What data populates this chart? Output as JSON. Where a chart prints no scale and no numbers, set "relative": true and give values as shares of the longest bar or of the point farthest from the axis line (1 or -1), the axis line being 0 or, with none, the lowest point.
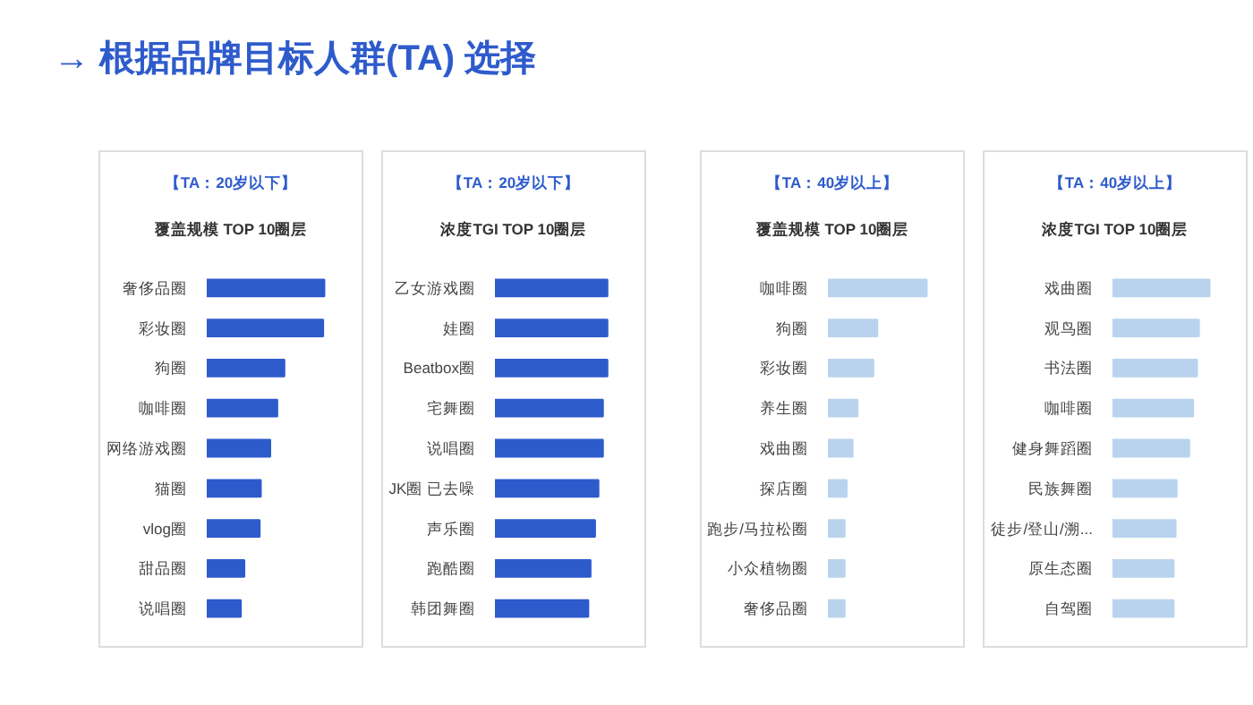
{
  "chart_data": [
    {
      "type": "bar",
      "orientation": "horizontal",
      "relative": true,
      "grid": false,
      "title": "【TA：20岁以下】",
      "subtitle": "覆盖规模 TOP 10圈层",
      "annotations": [
        "→ 根据品牌目标人群(TA) 选择"
      ],
      "color": "#2e5bcc",
      "categories": [
        "奢侈品圈",
        "彩妆圈",
        "狗圈",
        "咖啡圈",
        "网络游戏圈",
        "猫圈",
        "vlog圈",
        "甜品圈",
        "说唱圈"
      ],
      "values": [
        1,
        0.99,
        0.66,
        0.6,
        0.54,
        0.46,
        0.45,
        0.32,
        0.29
      ]
    },
    {
      "type": "bar",
      "orientation": "horizontal",
      "relative": true,
      "grid": false,
      "title": "【TA：20岁以下】",
      "subtitle": "浓度TGI TOP 10圈层",
      "color": "#2e5bcc",
      "categories": [
        "乙女游戏圈",
        "娃圈",
        "Beatbox圈",
        "宅舞圈",
        "说唱圈",
        "JK圈 已去噪",
        "声乐圈",
        "跑酷圈",
        "韩团舞圈"
      ],
      "values": [
        1,
        1,
        1,
        0.96,
        0.96,
        0.92,
        0.89,
        0.85,
        0.83
      ]
    },
    {
      "type": "bar",
      "orientation": "horizontal",
      "relative": true,
      "grid": false,
      "title": "【TA：40岁以上】",
      "subtitle": "覆盖规模 TOP 10圈层",
      "color": "#b9d3ee",
      "categories": [
        "咖啡圈",
        "狗圈",
        "彩妆圈",
        "养生圈",
        "戏曲圈",
        "探店圈",
        "跑步/马拉松圈",
        "小众植物圈",
        "奢侈品圈"
      ],
      "values": [
        1,
        0.5,
        0.46,
        0.3,
        0.25,
        0.19,
        0.17,
        0.17,
        0.17
      ]
    },
    {
      "type": "bar",
      "orientation": "horizontal",
      "relative": true,
      "grid": false,
      "title": "【TA：40岁以上】",
      "subtitle": "浓度TGI TOP 10圈层",
      "color": "#b9d3ee",
      "categories": [
        "戏曲圈",
        "观鸟圈",
        "书法圈",
        "咖啡圈",
        "健身舞蹈圈",
        "民族舞圈",
        "徒步/登山/溯...",
        "原生态圈",
        "自驾圈"
      ],
      "values": [
        1,
        0.89,
        0.87,
        0.83,
        0.79,
        0.66,
        0.65,
        0.63,
        0.63
      ]
    }
  ]
}
